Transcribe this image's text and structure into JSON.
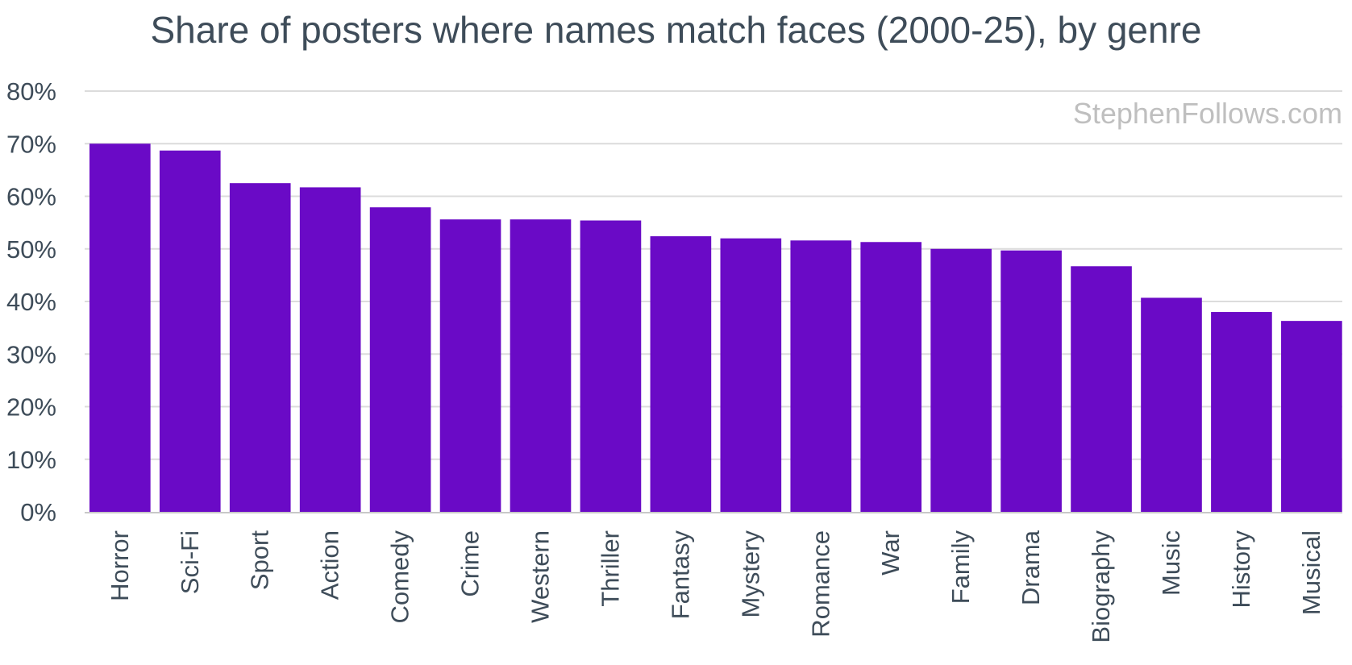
{
  "chart_data": {
    "type": "bar",
    "title": "Share of posters where names match faces (2000-25), by genre",
    "xlabel": "",
    "ylabel": "",
    "categories": [
      "Horror",
      "Sci-Fi",
      "Sport",
      "Action",
      "Comedy",
      "Crime",
      "Western",
      "Thriller",
      "Fantasy",
      "Mystery",
      "Romance",
      "War",
      "Family",
      "Drama",
      "Biography",
      "Music",
      "History",
      "Musical"
    ],
    "values": [
      70,
      68.7,
      62.5,
      61.7,
      57.9,
      55.6,
      55.6,
      55.4,
      52.4,
      52.0,
      51.6,
      51.3,
      50.0,
      49.7,
      46.7,
      40.7,
      38.0,
      36.3
    ],
    "ylim": [
      0,
      80
    ],
    "yticks": [
      0,
      10,
      20,
      30,
      40,
      50,
      60,
      70,
      80
    ],
    "ytick_labels": [
      "0%",
      "10%",
      "20%",
      "30%",
      "40%",
      "50%",
      "60%",
      "70%",
      "80%"
    ],
    "grid": true,
    "legend": "none",
    "bar_color": "#6a0ac6",
    "grid_color": "#dcdcdc",
    "axis_color": "#c8c8c8",
    "watermark": "StephenFollows.com"
  }
}
